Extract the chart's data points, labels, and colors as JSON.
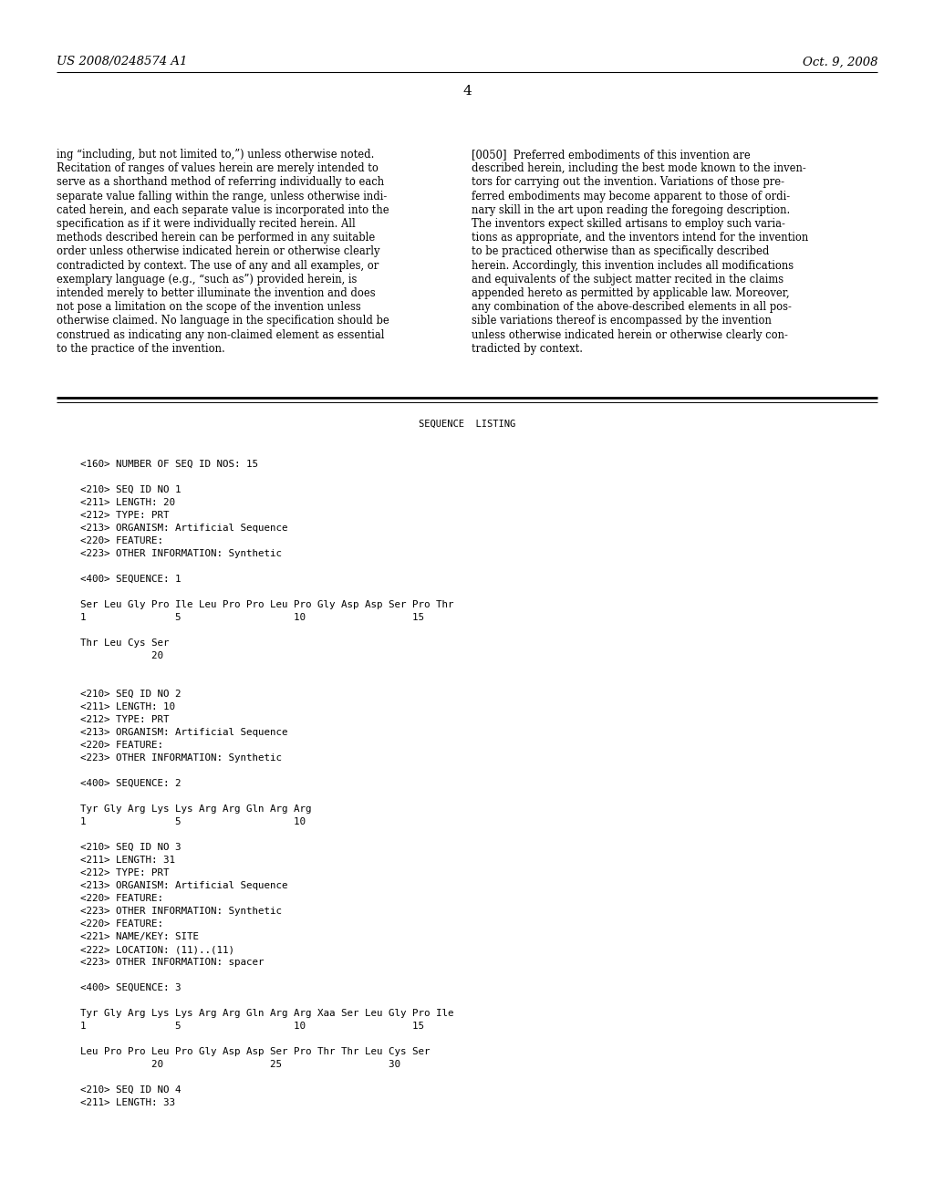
{
  "background_color": "#ffffff",
  "header_left": "US 2008/0248574 A1",
  "header_right": "Oct. 9, 2008",
  "page_number": "4",
  "left_column_text": [
    "ing “including, but not limited to,”) unless otherwise noted.",
    "Recitation of ranges of values herein are merely intended to",
    "serve as a shorthand method of referring individually to each",
    "separate value falling within the range, unless otherwise indi-",
    "cated herein, and each separate value is incorporated into the",
    "specification as if it were individually recited herein. All",
    "methods described herein can be performed in any suitable",
    "order unless otherwise indicated herein or otherwise clearly",
    "contradicted by context. The use of any and all examples, or",
    "exemplary language (e.g., “such as”) provided herein, is",
    "intended merely to better illuminate the invention and does",
    "not pose a limitation on the scope of the invention unless",
    "otherwise claimed. No language in the specification should be",
    "construed as indicating any non-claimed element as essential",
    "to the practice of the invention."
  ],
  "right_column_text": [
    "[0050]  Preferred embodiments of this invention are",
    "described herein, including the best mode known to the inven-",
    "tors for carrying out the invention. Variations of those pre-",
    "ferred embodiments may become apparent to those of ordi-",
    "nary skill in the art upon reading the foregoing description.",
    "The inventors expect skilled artisans to employ such varia-",
    "tions as appropriate, and the inventors intend for the invention",
    "to be practiced otherwise than as specifically described",
    "herein. Accordingly, this invention includes all modifications",
    "and equivalents of the subject matter recited in the claims",
    "appended hereto as permitted by applicable law. Moreover,",
    "any combination of the above-described elements in all pos-",
    "sible variations thereof is encompassed by the invention",
    "unless otherwise indicated herein or otherwise clearly con-",
    "tradicted by context."
  ],
  "sequence_listing_title": "SEQUENCE  LISTING",
  "sequence_lines": [
    "",
    "<160> NUMBER OF SEQ ID NOS: 15",
    "",
    "<210> SEQ ID NO 1",
    "<211> LENGTH: 20",
    "<212> TYPE: PRT",
    "<213> ORGANISM: Artificial Sequence",
    "<220> FEATURE:",
    "<223> OTHER INFORMATION: Synthetic",
    "",
    "<400> SEQUENCE: 1",
    "",
    "Ser Leu Gly Pro Ile Leu Pro Pro Leu Pro Gly Asp Asp Ser Pro Thr",
    "1               5                   10                  15",
    "",
    "Thr Leu Cys Ser",
    "            20",
    "",
    "",
    "<210> SEQ ID NO 2",
    "<211> LENGTH: 10",
    "<212> TYPE: PRT",
    "<213> ORGANISM: Artificial Sequence",
    "<220> FEATURE:",
    "<223> OTHER INFORMATION: Synthetic",
    "",
    "<400> SEQUENCE: 2",
    "",
    "Tyr Gly Arg Lys Lys Arg Arg Gln Arg Arg",
    "1               5                   10",
    "",
    "<210> SEQ ID NO 3",
    "<211> LENGTH: 31",
    "<212> TYPE: PRT",
    "<213> ORGANISM: Artificial Sequence",
    "<220> FEATURE:",
    "<223> OTHER INFORMATION: Synthetic",
    "<220> FEATURE:",
    "<221> NAME/KEY: SITE",
    "<222> LOCATION: (11)..(11)",
    "<223> OTHER INFORMATION: spacer",
    "",
    "<400> SEQUENCE: 3",
    "",
    "Tyr Gly Arg Lys Lys Arg Arg Gln Arg Arg Xaa Ser Leu Gly Pro Ile",
    "1               5                   10                  15",
    "",
    "Leu Pro Pro Leu Pro Gly Asp Asp Ser Pro Thr Thr Leu Cys Ser",
    "            20                  25                  30",
    "",
    "<210> SEQ ID NO 4",
    "<211> LENGTH: 33"
  ]
}
